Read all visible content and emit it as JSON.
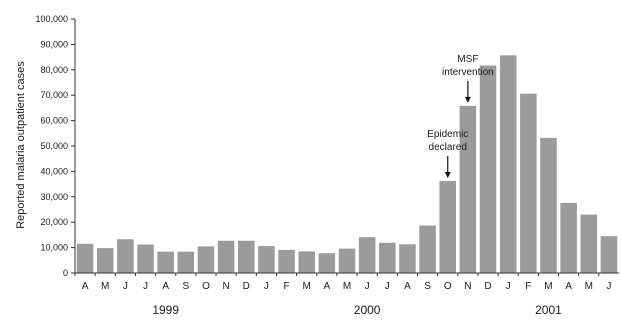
{
  "chart_data": {
    "type": "bar",
    "title": "",
    "xlabel": "",
    "ylabel": "Reported malaria outpatient cases",
    "ylim": [
      0,
      100000
    ],
    "yticks": [
      0,
      10000,
      20000,
      30000,
      40000,
      50000,
      60000,
      70000,
      80000,
      90000,
      100000
    ],
    "ytick_labels": [
      "0",
      "10,000",
      "20,000",
      "30,000",
      "40,000",
      "50,000",
      "60,000",
      "70,000",
      "80,000",
      "90,000",
      "100,000"
    ],
    "grid": false,
    "categories": [
      "A",
      "M",
      "J",
      "J",
      "A",
      "S",
      "O",
      "N",
      "D",
      "J",
      "F",
      "M",
      "A",
      "M",
      "J",
      "J",
      "A",
      "S",
      "O",
      "N",
      "D",
      "J",
      "F",
      "M",
      "A",
      "M",
      "J"
    ],
    "values": [
      11500,
      9800,
      13300,
      11200,
      8400,
      8400,
      10500,
      12700,
      12700,
      10600,
      9100,
      8500,
      7800,
      9600,
      14100,
      11900,
      11300,
      18700,
      36200,
      65800,
      81700,
      85700,
      70600,
      53200,
      27600,
      23000,
      14500
    ],
    "bar_color": "#9b9b9b",
    "years": [
      {
        "label": "1999",
        "center_index": 4
      },
      {
        "label": "2000",
        "center_index": 14
      },
      {
        "label": "2001",
        "center_index": 23
      }
    ],
    "annotations": [
      {
        "lines": [
          "Epidemic",
          "declared"
        ],
        "bar_index": 18
      },
      {
        "lines": [
          "MSF",
          "intervention"
        ],
        "bar_index": 19
      }
    ]
  }
}
